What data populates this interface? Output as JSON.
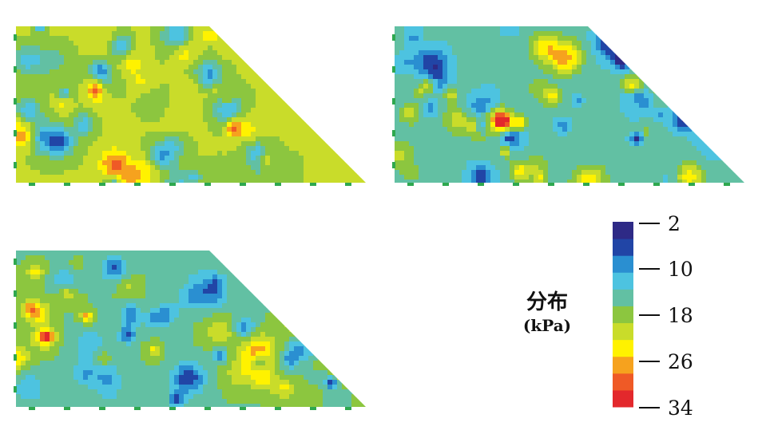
{
  "panels": [
    {
      "id": "top-left",
      "seed": 11,
      "bias": 0.15
    },
    {
      "id": "top-right",
      "seed": 37,
      "bias": -0.35
    },
    {
      "id": "bottom-left",
      "seed": 73,
      "bias": -0.15
    }
  ],
  "legend": {
    "title": "分布",
    "unit": "(kPa)",
    "ticks": [
      "2",
      "10",
      "18",
      "26",
      "34"
    ],
    "range": [
      2,
      34
    ],
    "colors": [
      "#e3282c",
      "#ef5a26",
      "#f6a21e",
      "#fff200",
      "#c9dc2a",
      "#8cc63f",
      "#62c0a3",
      "#4dc3e0",
      "#2a8fd1",
      "#2145a6",
      "#2e2a86"
    ]
  }
}
